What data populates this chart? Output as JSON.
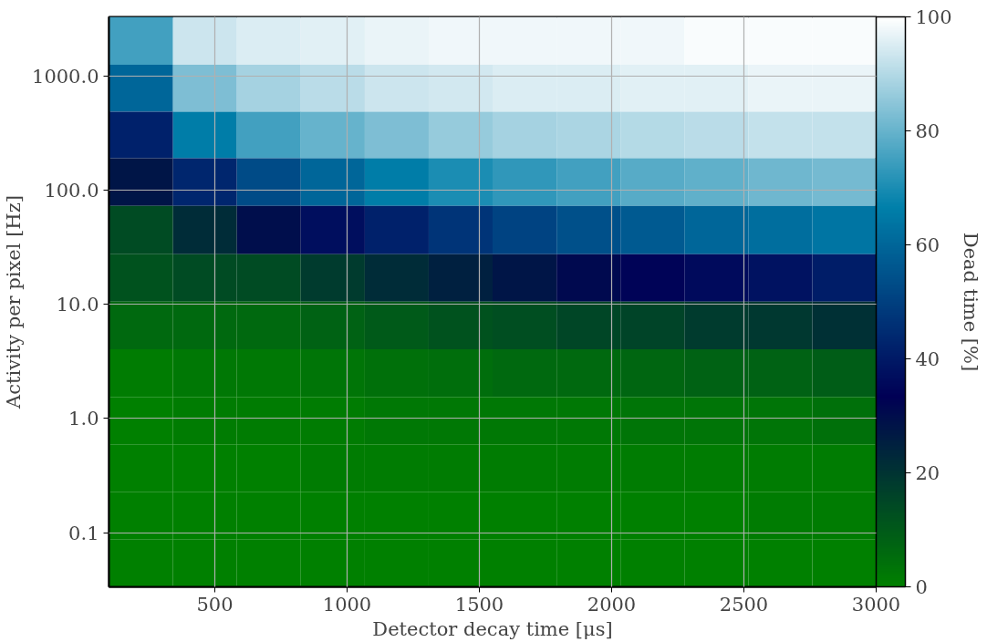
{
  "chart_data": {
    "type": "heatmap",
    "xlabel": "Detector decay time [μs]",
    "ylabel": "Activity per pixel [Hz]",
    "clabel": "Dead time [%]",
    "x": [
      221,
      463,
      704,
      946,
      1188,
      1429,
      1671,
      1913,
      2154,
      2396,
      2638,
      2879
    ],
    "y": [
      2000,
      780,
      300,
      120,
      44,
      17,
      6.5,
      2.5,
      0.95,
      0.37,
      0.14,
      0.054
    ],
    "cells": [
      [
        75,
        93,
        95,
        96,
        97,
        98,
        98,
        98,
        98,
        99,
        99,
        99
      ],
      [
        60,
        83,
        88,
        91,
        93,
        94,
        95,
        95,
        96,
        96,
        97,
        97
      ],
      [
        42,
        66,
        75,
        80,
        83,
        86,
        88,
        89,
        90,
        91,
        92,
        92
      ],
      [
        28,
        43,
        53,
        60,
        66,
        70,
        73,
        75,
        78,
        79,
        81,
        82
      ],
      [
        14,
        22,
        30,
        37,
        42,
        47,
        51,
        54,
        57,
        60,
        62,
        64
      ],
      [
        12,
        14,
        14,
        18,
        22,
        25,
        28,
        31,
        34,
        36,
        38,
        41
      ],
      [
        6,
        6,
        6,
        8,
        10,
        12,
        13,
        15,
        16,
        18,
        19,
        21
      ],
      [
        1,
        2,
        2,
        3,
        4,
        5,
        6,
        6,
        7,
        8,
        8,
        9
      ],
      [
        0,
        1,
        1,
        1,
        2,
        2,
        2,
        2,
        3,
        3,
        3,
        4
      ],
      [
        0,
        0,
        0,
        1,
        1,
        1,
        1,
        1,
        1,
        1,
        1,
        1
      ],
      [
        0,
        0,
        0,
        0,
        0,
        0,
        0,
        0,
        0,
        0,
        1,
        1
      ],
      [
        0,
        0,
        0,
        0,
        0,
        0,
        0,
        0,
        0,
        0,
        0,
        0
      ]
    ],
    "xlim": [
      100,
      3000
    ],
    "ylim": [
      0.0335,
      3280
    ],
    "xticks": [
      500,
      1000,
      1500,
      2000,
      2500,
      3000
    ],
    "yticks": [
      {
        "value": 0.1,
        "label": "0.1"
      },
      {
        "value": 1,
        "label": "1.0"
      },
      {
        "value": 10,
        "label": "10.0"
      },
      {
        "value": 100,
        "label": "100.0"
      },
      {
        "value": 1000,
        "label": "1000.0"
      }
    ],
    "log": "y",
    "grid": true,
    "clim": [
      0,
      100
    ],
    "cticks": [
      0,
      20,
      40,
      60,
      80,
      100
    ]
  }
}
